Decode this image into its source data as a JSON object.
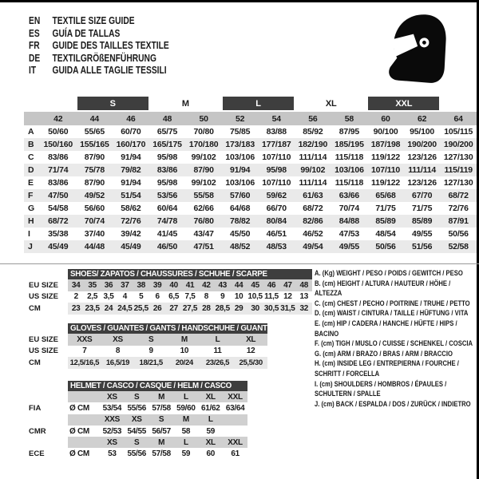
{
  "header": {
    "languages": [
      {
        "code": "EN",
        "text": "TEXTILE SIZE GUIDE"
      },
      {
        "code": "ES",
        "text": "GUÍA DE TALLAS"
      },
      {
        "code": "FR",
        "text": "GUIDE DES TAILLES TEXTILE"
      },
      {
        "code": "DE",
        "text": "TEXTILGRÖßENFÜHRUNG"
      },
      {
        "code": "IT",
        "text": "GUIDA ALLE TAGLIE TESSILI"
      }
    ],
    "logo_icon": "racing-helmet-icon"
  },
  "colors": {
    "dark_bar": "#3e3e3e",
    "header_row_gray": "#c5c5c5",
    "stripe_row": "#eaeaea",
    "section_row_gray": "#d0d0d0",
    "section_row_light": "#e8e8e8",
    "icon_black": "#0a0a0a"
  },
  "textile_table": {
    "size_bands": [
      {
        "label": "",
        "span": 2,
        "dark": false
      },
      {
        "label": "S",
        "span": 2,
        "dark": true
      },
      {
        "label": "M",
        "span": 2,
        "dark": false
      },
      {
        "label": "L",
        "span": 2,
        "dark": true
      },
      {
        "label": "XL",
        "span": 2,
        "dark": false
      },
      {
        "label": "XXL",
        "span": 2,
        "dark": true
      },
      {
        "label": "",
        "span": 1,
        "dark": false
      }
    ],
    "columns": [
      "42",
      "44",
      "46",
      "48",
      "50",
      "52",
      "54",
      "56",
      "58",
      "60",
      "62",
      "64"
    ],
    "rows": [
      {
        "label": "A",
        "values": [
          "50/60",
          "55/65",
          "60/70",
          "65/75",
          "70/80",
          "75/85",
          "83/88",
          "85/92",
          "87/95",
          "90/100",
          "95/100",
          "105/115"
        ]
      },
      {
        "label": "B",
        "values": [
          "150/160",
          "155/165",
          "160/170",
          "165/175",
          "170/180",
          "173/183",
          "177/187",
          "182/190",
          "185/195",
          "187/198",
          "190/200",
          "190/200"
        ]
      },
      {
        "label": "C",
        "values": [
          "83/86",
          "87/90",
          "91/94",
          "95/98",
          "99/102",
          "103/106",
          "107/110",
          "111/114",
          "115/118",
          "119/122",
          "123/126",
          "127/130"
        ]
      },
      {
        "label": "D",
        "values": [
          "71/74",
          "75/78",
          "79/82",
          "83/86",
          "87/90",
          "91/94",
          "95/98",
          "99/102",
          "103/106",
          "107/110",
          "111/114",
          "115/119"
        ]
      },
      {
        "label": "E",
        "values": [
          "83/86",
          "87/90",
          "91/94",
          "95/98",
          "99/102",
          "103/106",
          "107/110",
          "111/114",
          "115/118",
          "119/122",
          "123/126",
          "127/130"
        ]
      },
      {
        "label": "F",
        "values": [
          "47/50",
          "49/52",
          "51/54",
          "53/56",
          "55/58",
          "57/60",
          "59/62",
          "61/63",
          "63/66",
          "65/68",
          "67/70",
          "68/72"
        ]
      },
      {
        "label": "G",
        "values": [
          "54/58",
          "56/60",
          "58/62",
          "60/64",
          "62/66",
          "64/68",
          "66/70",
          "68/72",
          "70/74",
          "71/75",
          "71/75",
          "72/76"
        ]
      },
      {
        "label": "H",
        "values": [
          "68/72",
          "70/74",
          "72/76",
          "74/78",
          "76/80",
          "78/82",
          "80/84",
          "82/86",
          "84/88",
          "85/89",
          "85/89",
          "87/91"
        ]
      },
      {
        "label": "I",
        "values": [
          "35/38",
          "37/40",
          "39/42",
          "41/45",
          "43/47",
          "45/50",
          "46/51",
          "46/52",
          "47/53",
          "48/54",
          "49/55",
          "50/56"
        ]
      },
      {
        "label": "J",
        "values": [
          "45/49",
          "44/48",
          "45/49",
          "46/50",
          "47/51",
          "48/52",
          "48/53",
          "49/54",
          "49/55",
          "50/56",
          "51/56",
          "52/58"
        ]
      }
    ]
  },
  "shoes": {
    "title": "SHOES/ ZAPATOS / CHAUSSURES / SCHUHE / SCARPE",
    "rows": [
      {
        "label": "EU SIZE",
        "shade": "gray",
        "values": [
          "34",
          "35",
          "36",
          "37",
          "38",
          "39",
          "40",
          "41",
          "42",
          "43",
          "44",
          "45",
          "46",
          "47",
          "48"
        ]
      },
      {
        "label": "US SIZE",
        "shade": "white",
        "values": [
          "2",
          "2,5",
          "3,5",
          "4",
          "5",
          "6",
          "6,5",
          "7,5",
          "8",
          "9",
          "10",
          "10,5",
          "11,5",
          "12",
          "13"
        ]
      },
      {
        "label": "CM",
        "shade": "light",
        "values": [
          "23",
          "23,5",
          "24",
          "24,5",
          "25,5",
          "26",
          "27",
          "27,5",
          "28",
          "28,5",
          "29",
          "30",
          "30,5",
          "31,5",
          "32"
        ]
      }
    ]
  },
  "gloves": {
    "title": "GLOVES / GUANTES / GANTS / HANDSCHUHE / GUANTI",
    "rows": [
      {
        "label": "EU SIZE",
        "shade": "gray",
        "values": [
          "XXS",
          "XS",
          "S",
          "M",
          "L",
          "XL"
        ]
      },
      {
        "label": "US SIZE",
        "shade": "white",
        "values": [
          "7",
          "8",
          "9",
          "10",
          "11",
          "12"
        ]
      },
      {
        "label": "CM",
        "shade": "light",
        "values": [
          "12,5/16,5",
          "16,5/19",
          "18/21,5",
          "20/24",
          "23/26,5",
          "25,5/30"
        ]
      }
    ]
  },
  "helmet": {
    "title": "HELMET / CASCO / CASQUE / HELM / CASCO",
    "groups": [
      {
        "label": "FIA",
        "unit": "Ø CM",
        "sizes": [
          "XS",
          "S",
          "M",
          "L",
          "XL",
          "XXL"
        ],
        "values": [
          "53/54",
          "55/56",
          "57/58",
          "59/60",
          "61/62",
          "63/64"
        ]
      },
      {
        "label": "CMR",
        "unit": "Ø CM",
        "sizes": [
          "XXS",
          "XS",
          "S",
          "M",
          "L",
          ""
        ],
        "values": [
          "52/53",
          "54/55",
          "56/57",
          "58",
          "59",
          ""
        ]
      },
      {
        "label": "ECE",
        "unit": "Ø CM",
        "sizes": [
          "XS",
          "S",
          "M",
          "L",
          "XL",
          "XXL"
        ],
        "values": [
          "53",
          "55/56",
          "57/58",
          "59",
          "60",
          "61"
        ]
      }
    ]
  },
  "legend": [
    "A. (Kg) WEIGHT / PESO / POIDS / GEWITCH / PESO",
    "B. (cm) HEIGHT / ALTURA / HAUTEUR / HÖHE / ALTEZZA",
    "C. (cm) CHEST / PECHO / POITRINE / TRUHE / PETTO",
    "D. (cm) WAIST / CINTURA / TAILLE / HÜFTUNG / VITA",
    "E. (cm) HIP / CADERA / HANCHE / HÜFTE / HIPS / BACINO",
    "F. (cm) TIGH / MUSLO / CUISSE / SCHENKEL / COSCIA",
    "G. (cm) ARM / BRAZO / BRAS / ARM / BRACCIO",
    "H. (cm) INSIDE LEG / ENTREPIERNA / FOURCHE / SCHRITT / FORCELLA",
    "I. (cm) SHOULDERS / HOMBROS / ÉPAULES / SCHULTERN / SPALLE",
    "J. (cm) BACK / ESPALDA / DOS / ZURÜCK / INDIETRO"
  ]
}
